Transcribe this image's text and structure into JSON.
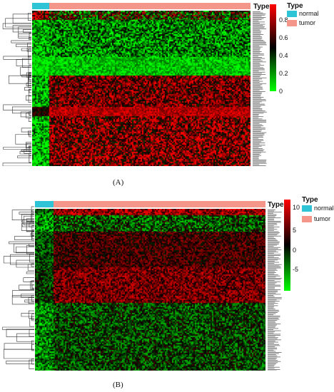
{
  "figure": {
    "panels": [
      {
        "caption": "(A)",
        "annotation_title": "Type",
        "legend_title": "Type",
        "groups": [
          {
            "label": "normal",
            "color": "#2ec4d6"
          },
          {
            "label": "tumor",
            "color": "#f4968a"
          }
        ],
        "colorbar_ticks": [
          "0.8",
          "0.6",
          "0.4",
          "0.2",
          "0"
        ],
        "colorbar_colors": [
          "#ff0000",
          "#000000",
          "#00ff00"
        ],
        "normal_fraction": 0.08
      },
      {
        "caption": "(B)",
        "annotation_title": "Type",
        "legend_title": "Type",
        "groups": [
          {
            "label": "normal",
            "color": "#2ec4d6"
          },
          {
            "label": "tumor",
            "color": "#f4968a"
          }
        ],
        "colorbar_ticks": [
          "10",
          "5",
          "0",
          "-5"
        ],
        "colorbar_colors": [
          "#ff0000",
          "#000000",
          "#00ff00"
        ],
        "normal_fraction": 0.08
      }
    ]
  }
}
